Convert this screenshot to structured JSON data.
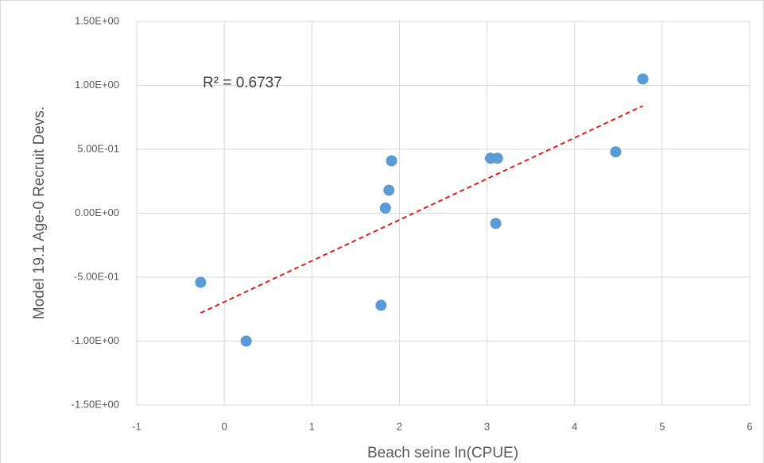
{
  "chart_data": {
    "type": "scatter",
    "x_label": "Beach seine ln(CPUE)",
    "y_label": "Model 19.1 Age-0 Recruit Devs.",
    "annotation": "R² = 0.6737",
    "color": "#5b9bd5",
    "x": [
      -0.27,
      0.25,
      1.79,
      1.84,
      1.88,
      1.91,
      3.04,
      3.12,
      3.1,
      4.47,
      4.78
    ],
    "y": [
      -0.54,
      -1.0,
      -0.72,
      0.04,
      0.18,
      0.41,
      0.43,
      0.43,
      -0.08,
      0.48,
      1.05
    ],
    "trendline": {
      "x": [
        -0.27,
        4.78
      ],
      "y": [
        -0.78,
        0.84
      ],
      "color": "#e02020"
    },
    "xlim": [
      -1,
      6
    ],
    "xticks": [
      -1,
      0,
      1,
      2,
      3,
      4,
      5,
      6
    ],
    "ylim": [
      -1.5,
      1.5
    ],
    "yticks": [
      {
        "value": -1.5,
        "label": "-1.50E+00"
      },
      {
        "value": -1.0,
        "label": "-1.00E+00"
      },
      {
        "value": -0.5,
        "label": "-5.00E-01"
      },
      {
        "value": 0,
        "label": "0.00E+00"
      },
      {
        "value": 0.5,
        "label": "5.00E-01"
      },
      {
        "value": 1.0,
        "label": "1.00E+00"
      },
      {
        "value": 1.5,
        "label": "1.50E+00"
      }
    ],
    "grid": true
  }
}
